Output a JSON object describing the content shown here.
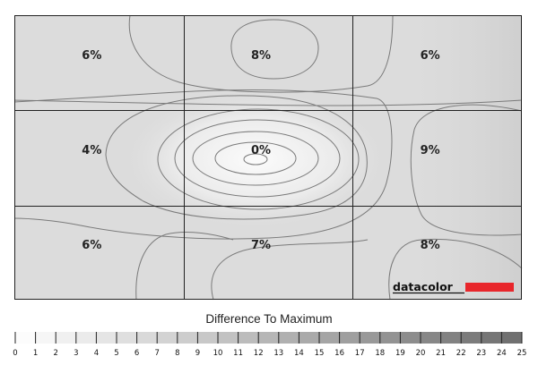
{
  "chart_data": {
    "type": "heatmap",
    "title": "",
    "grid": {
      "rows": 3,
      "cols": 3
    },
    "cells": [
      {
        "row": 0,
        "col": 0,
        "value": 6,
        "label": "6%"
      },
      {
        "row": 0,
        "col": 1,
        "value": 8,
        "label": "8%"
      },
      {
        "row": 0,
        "col": 2,
        "value": 6,
        "label": "6%"
      },
      {
        "row": 1,
        "col": 0,
        "value": 4,
        "label": "4%"
      },
      {
        "row": 1,
        "col": 1,
        "value": 0,
        "label": "0%"
      },
      {
        "row": 1,
        "col": 2,
        "value": 9,
        "label": "9%"
      },
      {
        "row": 2,
        "col": 0,
        "value": 6,
        "label": "6%"
      },
      {
        "row": 2,
        "col": 1,
        "value": 7,
        "label": "7%"
      },
      {
        "row": 2,
        "col": 2,
        "value": 8,
        "label": "8%"
      }
    ],
    "colorbar": {
      "label": "Difference To Maximum",
      "min": 0,
      "max": 25,
      "ticks": [
        "0",
        "1",
        "2",
        "3",
        "4",
        "5",
        "6",
        "7",
        "8",
        "9",
        "10",
        "11",
        "12",
        "13",
        "14",
        "15",
        "16",
        "17",
        "18",
        "19",
        "20",
        "21",
        "22",
        "23",
        "24",
        "25"
      ]
    },
    "contours": true
  },
  "brand": {
    "name": "datacolor",
    "accent_color": "#e8262b"
  },
  "colors": {
    "plot_background": "#dcdcdc",
    "hotspot": "#fbfbfb",
    "grid_line": "#222222",
    "contour_line": "#777777"
  }
}
